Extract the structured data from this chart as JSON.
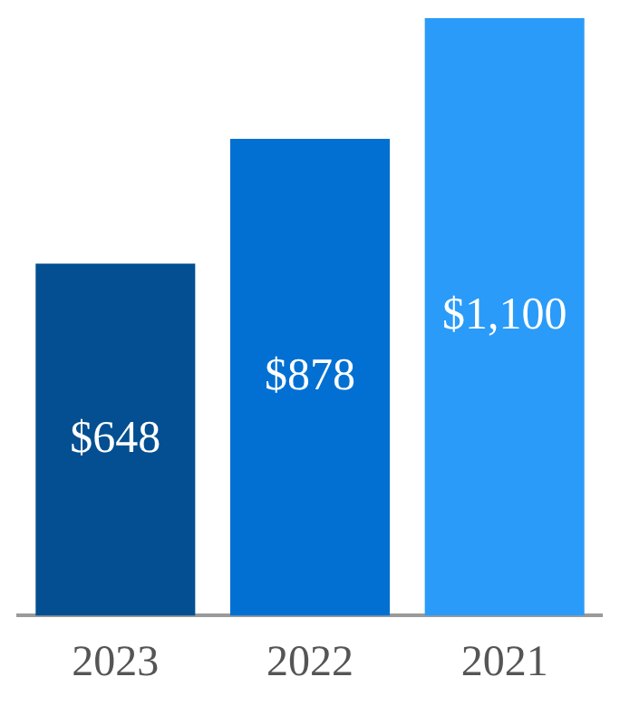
{
  "chart_data": {
    "type": "bar",
    "categories": [
      "2023",
      "2022",
      "2021"
    ],
    "values": [
      648,
      878,
      1100
    ],
    "colors": [
      "#034f91",
      "#0270d2",
      "#2a9bf8"
    ],
    "value_labels": [
      "$648",
      "$878",
      "$1,100"
    ]
  }
}
